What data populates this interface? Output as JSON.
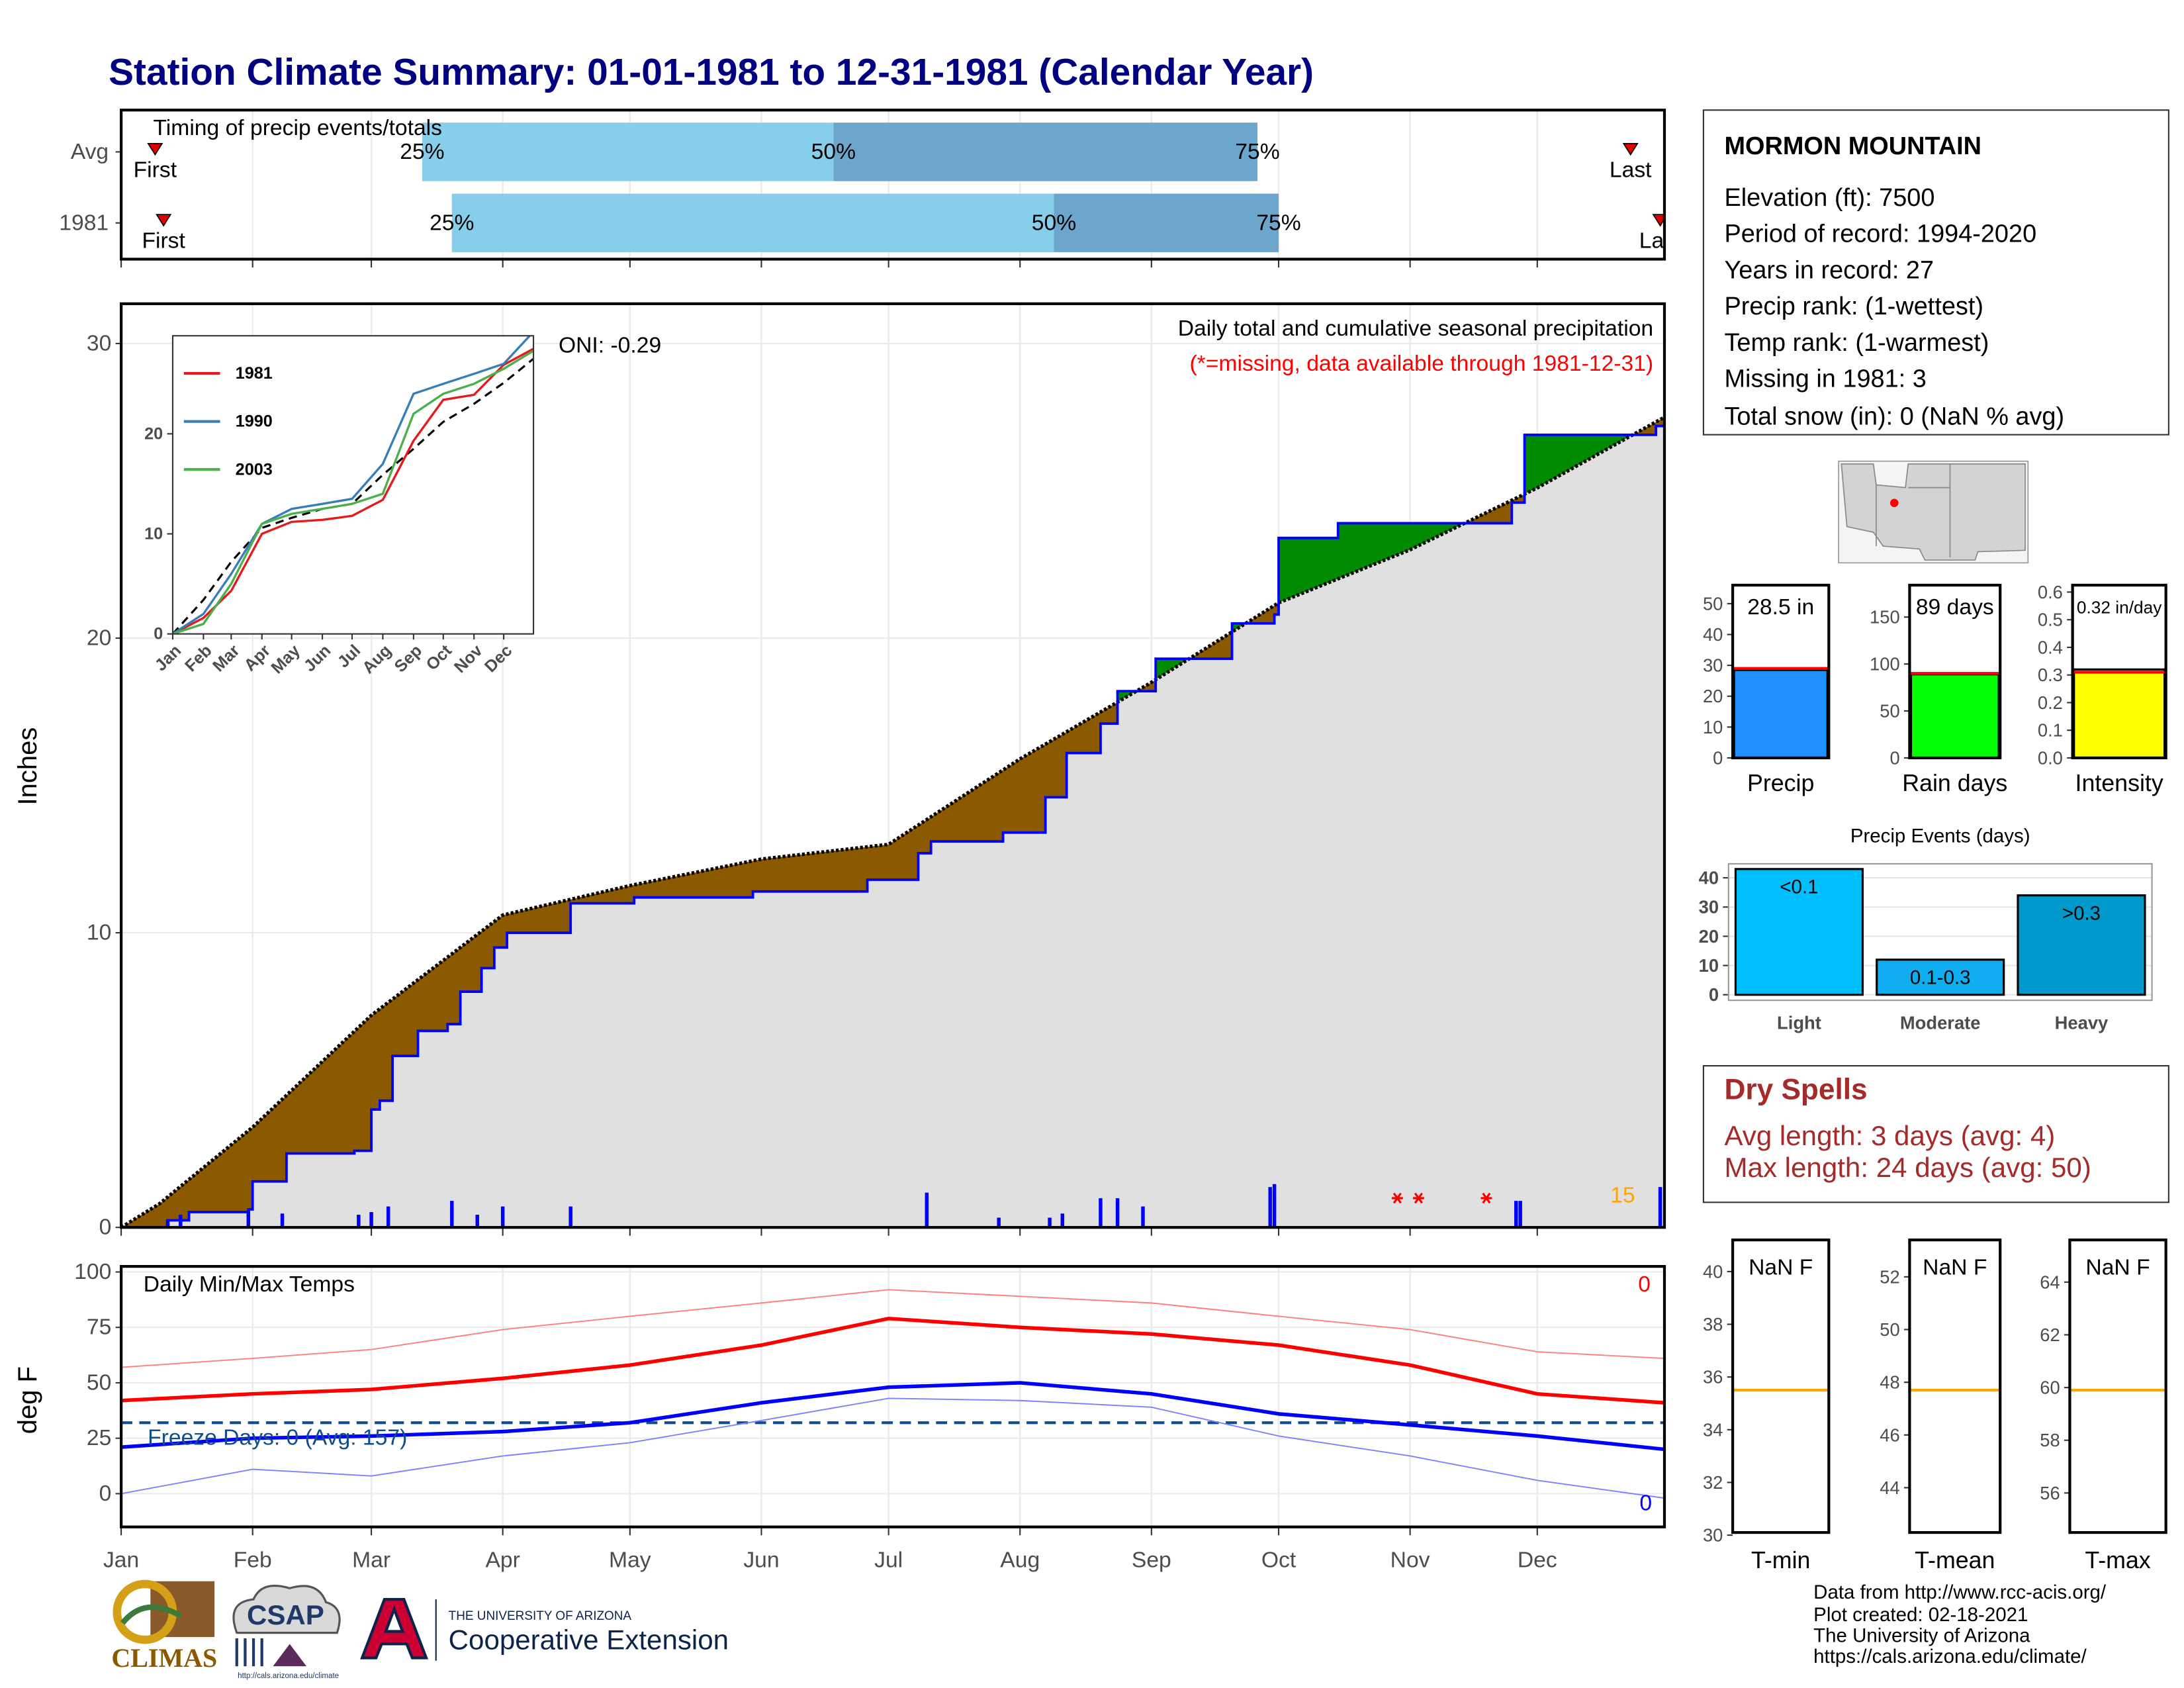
{
  "title": "Station Climate Summary: 01-01-1981 to 12-31-1981 (Calendar Year)",
  "info": {
    "station": "MORMON MOUNTAIN",
    "lines": [
      "Elevation (ft): 7500",
      "Period of record: 1994-2020",
      "Years in record: 27",
      "Precip rank:  (1-wettest)",
      "Temp rank:  (1-warmest)",
      "Missing in 1981: 3",
      "Total snow (in): 0 (NaN % avg)"
    ]
  },
  "dry_spells": {
    "title": "Dry Spells",
    "lines": [
      "Avg length: 3 days (avg: 4)",
      "Max length: 24 days (avg: 50)"
    ]
  },
  "footer": [
    "Data from http://www.rcc-acis.org/",
    "Plot created: 02-18-2021",
    "The University of Arizona",
    "https://cals.arizona.edu/climate/"
  ],
  "logos": {
    "climas": "CLIMAS",
    "csap": "CSAP",
    "csap_url": "http://cals.arizona.edu/climate",
    "university": "THE UNIVERSITY OF ARIZONA",
    "extension": "Cooperative Extension"
  },
  "chart_data": [
    {
      "type": "timing",
      "title": "Timing of precip events/totals",
      "categories": [
        "Avg",
        "1981"
      ],
      "q25": [
        72,
        79
      ],
      "q50": [
        169,
        221
      ],
      "q75": [
        269,
        274
      ],
      "first": [
        9,
        11
      ],
      "last": [
        357,
        364
      ],
      "quantile_labels": [
        "25%",
        "50%",
        "75%"
      ],
      "first_label": "First",
      "last_label": "Last",
      "colors": [
        "#87ceeb",
        "#6ca6cd"
      ],
      "xlim": [
        1,
        365
      ],
      "xticks": [
        1,
        32,
        60,
        91,
        121,
        152,
        182,
        213,
        244,
        274,
        305,
        335
      ]
    },
    {
      "type": "precip",
      "subtitle": "Daily total and cumulative seasonal precipitation",
      "note": "(*=missing, data available through 1981-12-31)",
      "oni_label": "ONI: -0.29",
      "count_label": "15",
      "y_label": "Inches",
      "observed": {
        "color": "#0000ff",
        "x": [
          1,
          12,
          17,
          31,
          32,
          40,
          56,
          60,
          62,
          65,
          71,
          78,
          81,
          86,
          89,
          92,
          107,
          122,
          150,
          177,
          189,
          192,
          209,
          219,
          224,
          232,
          236,
          245,
          263,
          273,
          274,
          288,
          329,
          332,
          360,
          363,
          365
        ],
        "values": [
          0,
          0.24,
          0.52,
          0.61,
          1.56,
          2.51,
          2.6,
          4.0,
          4.3,
          5.82,
          6.67,
          6.9,
          8.0,
          8.8,
          9.5,
          10.0,
          11.0,
          11.2,
          11.4,
          11.8,
          12.7,
          13.1,
          13.4,
          14.6,
          16.1,
          17.1,
          18.2,
          19.3,
          20.5,
          20.8,
          23.4,
          23.9,
          24.6,
          26.9,
          26.9,
          27.2,
          28.5
        ]
      },
      "average": {
        "color": "#000000",
        "x": [
          1,
          10,
          32,
          60,
          91,
          121,
          152,
          182,
          213,
          244,
          274,
          305,
          335,
          365
        ],
        "values": [
          0,
          0.8,
          3.4,
          7.2,
          10.6,
          11.6,
          12.5,
          13.0,
          15.9,
          18.5,
          21.2,
          23.0,
          25.1,
          27.5
        ]
      },
      "daily": {
        "color": "#0000ff",
        "x": [
          12,
          15,
          31,
          39,
          57,
          60,
          64,
          79,
          85,
          91,
          107,
          191,
          208,
          220,
          223,
          232,
          236,
          242,
          272,
          273,
          330,
          331,
          364
        ],
        "values": [
          0.28,
          0.43,
          0.57,
          0.47,
          0.43,
          0.52,
          0.71,
          0.9,
          0.43,
          0.71,
          0.71,
          1.18,
          0.33,
          0.33,
          0.47,
          0.99,
          0.99,
          0.71,
          1.37,
          1.47,
          0.9,
          0.9,
          1.37
        ]
      },
      "missing_days": [
        302,
        307,
        323
      ],
      "fill_colors": {
        "above": "#008b00",
        "below": "#8b5a00",
        "base": "#e0e0e0"
      },
      "xlim": [
        1,
        365
      ],
      "ylim": [
        0,
        31.35
      ],
      "xticks": [
        1,
        32,
        60,
        91,
        121,
        152,
        182,
        213,
        244,
        274,
        305,
        335
      ],
      "yticks": [
        0,
        10,
        20,
        30
      ],
      "grid": true
    },
    {
      "type": "line",
      "x": [
        1,
        32,
        60,
        91,
        121,
        152,
        182,
        213,
        244,
        274,
        305,
        335,
        365
      ],
      "series": [
        {
          "name": "1981",
          "color": "#e41a1c",
          "values": [
            0,
            1.6,
            4.3,
            10.0,
            11.2,
            11.4,
            11.8,
            13.4,
            19.3,
            23.4,
            23.9,
            26.9,
            28.5
          ]
        },
        {
          "name": "1990",
          "color": "#377eb8",
          "values": [
            0,
            2,
            6,
            11,
            12.5,
            13,
            13.5,
            17,
            24,
            25,
            26,
            27,
            30.2
          ]
        },
        {
          "name": "2003",
          "color": "#4daf4a",
          "values": [
            0,
            1,
            5,
            11,
            12,
            12.5,
            13,
            14,
            22,
            24,
            25,
            26.5,
            28.3
          ]
        }
      ],
      "average": {
        "color": "#000000",
        "values": [
          0,
          3.4,
          7.2,
          10.6,
          11.6,
          12.5,
          13.0,
          15.9,
          18.5,
          21.2,
          23.0,
          25.1,
          27.5
        ]
      },
      "xlim": [
        1,
        365
      ],
      "ylim": [
        0,
        29.8
      ],
      "xticks": [
        {
          "value": 1,
          "label": "Jan"
        },
        {
          "value": 32,
          "label": "Feb"
        },
        {
          "value": 60,
          "label": "Mar"
        },
        {
          "value": 91,
          "label": "Apr"
        },
        {
          "value": 121,
          "label": "May"
        },
        {
          "value": 152,
          "label": "Jun"
        },
        {
          "value": 182,
          "label": "Jul"
        },
        {
          "value": 213,
          "label": "Aug"
        },
        {
          "value": 244,
          "label": "Sep"
        },
        {
          "value": 274,
          "label": "Oct"
        },
        {
          "value": 305,
          "label": "Nov"
        },
        {
          "value": 335,
          "label": "Dec"
        }
      ],
      "yticks": [
        0,
        10,
        20
      ]
    },
    {
      "type": "bar",
      "categories": [
        "Precip"
      ],
      "values": [
        28.5
      ],
      "value_labels": [
        "28.5 in"
      ],
      "avg": 29,
      "avg_color": "#ff0000",
      "color": "#1e90ff",
      "ylim": [
        0,
        56
      ],
      "yticks": [
        0,
        10,
        20,
        30,
        40,
        50
      ]
    },
    {
      "type": "bar",
      "categories": [
        "Rain days"
      ],
      "values": [
        89
      ],
      "value_labels": [
        "89 days"
      ],
      "avg": 90,
      "avg_color": "#ff0000",
      "color": "#00ff00",
      "ylim": [
        0,
        184
      ],
      "yticks": [
        0,
        50,
        100,
        150
      ]
    },
    {
      "type": "bar",
      "categories": [
        "Intensity"
      ],
      "values": [
        0.32
      ],
      "value_labels": [
        "0.32 in/day"
      ],
      "avg": 0.31,
      "avg_color": "#ff0000",
      "color": "#ffff00",
      "ylim": [
        0,
        0.625
      ],
      "yticks": [
        {
          "value": 0,
          "label": "0.0"
        },
        0.1,
        0.2,
        0.3,
        0.4,
        0.5,
        0.6
      ]
    },
    {
      "type": "bar",
      "title": "Precip Events (days)",
      "categories": [
        "Light",
        "Moderate",
        "Heavy"
      ],
      "values": [
        43,
        12,
        34
      ],
      "value_labels": [
        "<0.1",
        "0.1-0.3",
        ">0.3"
      ],
      "colors": [
        "#00bfff",
        "#10aef0",
        "#0099cc"
      ],
      "ylim": [
        0,
        44.8
      ],
      "yticks": [
        0,
        10,
        20,
        30,
        40
      ],
      "grid": true
    },
    {
      "type": "temperature",
      "title": "Daily Min/Max Temps",
      "y_label": "deg F",
      "freeze_label": "Freeze Days: 0 (Avg: 157)",
      "max_count_label": "0",
      "min_count_label": "0",
      "x": [
        1,
        32,
        60,
        91,
        121,
        152,
        182,
        213,
        244,
        274,
        305,
        335,
        365
      ],
      "daily_max": {
        "color": "#ff7f7f",
        "values": [
          57,
          61,
          65,
          74,
          80,
          86,
          92,
          89,
          86,
          80,
          74,
          64,
          61
        ]
      },
      "daily_min": {
        "color": "#7f7fff",
        "values": [
          0,
          11,
          8,
          17,
          23,
          33,
          43,
          42,
          39,
          26,
          17,
          6,
          -2
        ]
      },
      "normal_max": {
        "color": "#ff0000",
        "values": [
          42,
          45,
          47,
          52,
          58,
          67,
          79,
          75,
          72,
          67,
          58,
          45,
          41
        ]
      },
      "normal_min": {
        "color": "#0000ff",
        "values": [
          21,
          25,
          26,
          28,
          32,
          41,
          48,
          50,
          45,
          36,
          31,
          26,
          20
        ]
      },
      "freeze_threshold": 32,
      "freeze_color": "#104e8b",
      "xlim": [
        1,
        365
      ],
      "ylim": [
        -15,
        102.5
      ],
      "xticks": [
        {
          "value": 1,
          "label": "Jan"
        },
        {
          "value": 32,
          "label": "Feb"
        },
        {
          "value": 60,
          "label": "Mar"
        },
        {
          "value": 91,
          "label": "Apr"
        },
        {
          "value": 121,
          "label": "May"
        },
        {
          "value": 152,
          "label": "Jun"
        },
        {
          "value": 182,
          "label": "Jul"
        },
        {
          "value": 213,
          "label": "Aug"
        },
        {
          "value": 244,
          "label": "Sep"
        },
        {
          "value": 274,
          "label": "Oct"
        },
        {
          "value": 305,
          "label": "Nov"
        },
        {
          "value": 335,
          "label": "Dec"
        }
      ],
      "yticks": [
        0,
        25,
        50,
        75,
        100
      ],
      "grid": true
    },
    {
      "type": "level",
      "categories": [
        "T-min"
      ],
      "values": [
        null
      ],
      "value_labels": [
        "NaN F"
      ],
      "avg": 35.5,
      "avg_color": "#ffa500",
      "ylim": [
        30.1,
        41.2
      ],
      "yticks": [
        30,
        32,
        34,
        36,
        38,
        40
      ]
    },
    {
      "type": "level",
      "categories": [
        "T-mean"
      ],
      "values": [
        null
      ],
      "value_labels": [
        "NaN F"
      ],
      "avg": 47.7,
      "avg_color": "#ffa500",
      "ylim": [
        42.3,
        53.4
      ],
      "yticks": [
        44,
        46,
        48,
        50,
        52
      ]
    },
    {
      "type": "level",
      "categories": [
        "T-max"
      ],
      "values": [
        null
      ],
      "value_labels": [
        "NaN F"
      ],
      "avg": 59.9,
      "avg_color": "#ffa500",
      "ylim": [
        54.5,
        65.6
      ],
      "yticks": [
        56,
        58,
        60,
        62,
        64
      ]
    }
  ]
}
